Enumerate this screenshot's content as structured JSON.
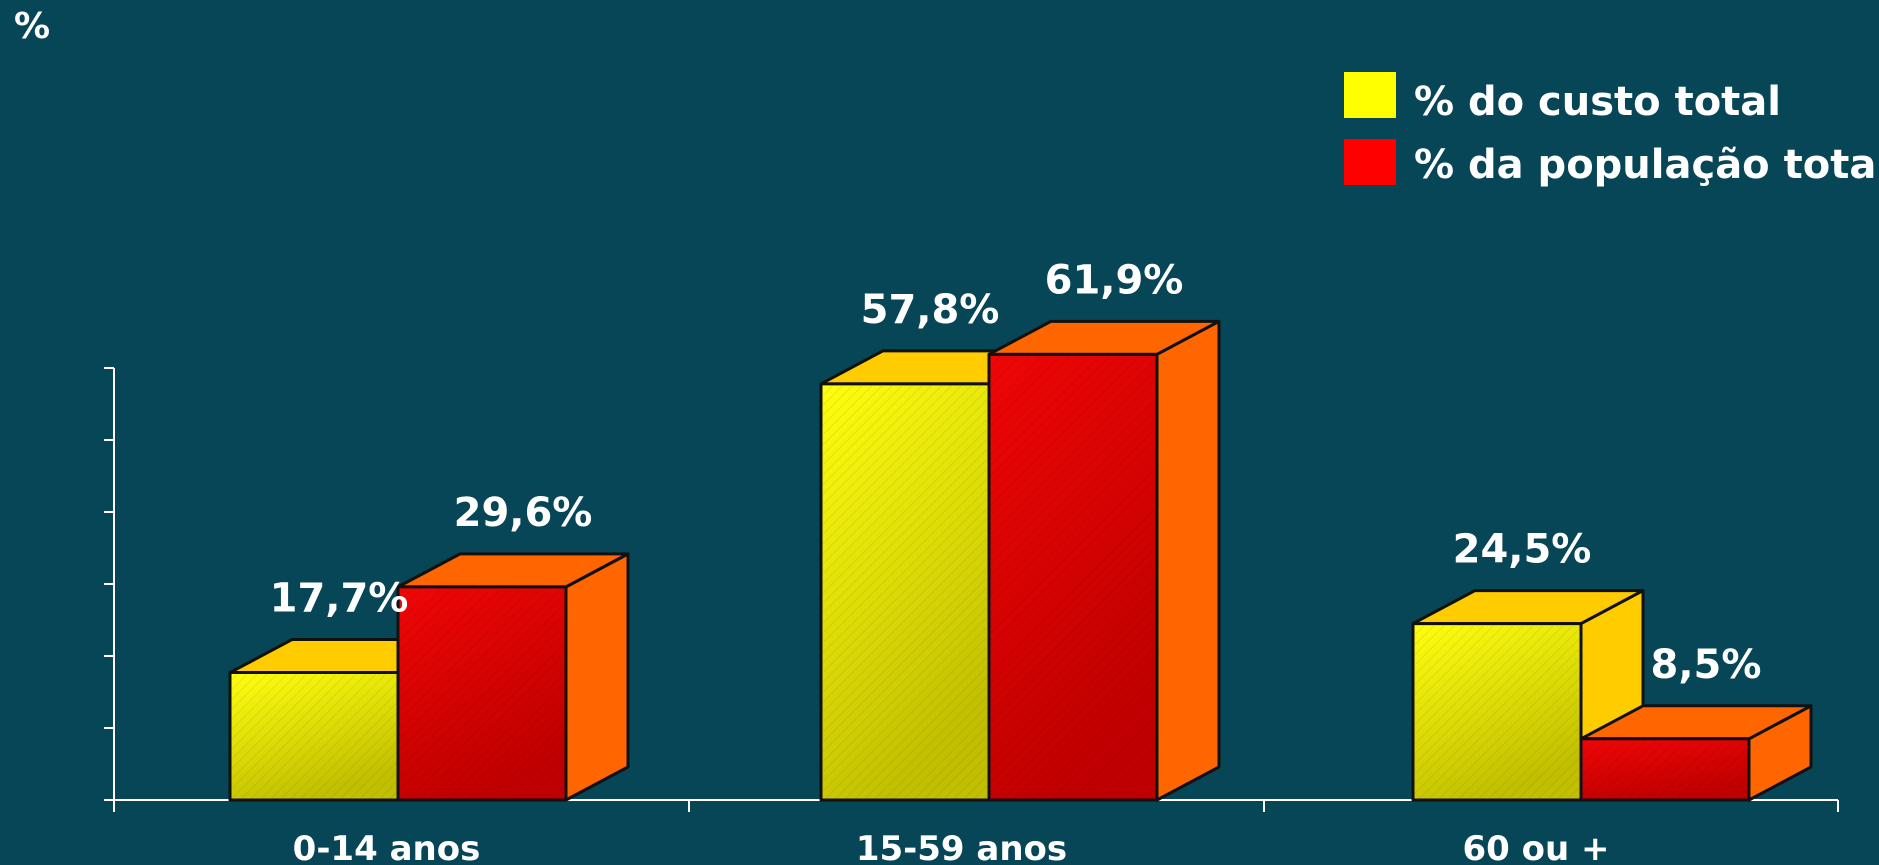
{
  "chart_data": {
    "type": "bar",
    "ylabel": "%",
    "categories": [
      "0-14 anos",
      "15-59 anos",
      "60 ou +"
    ],
    "series": [
      {
        "name": "% do custo total",
        "values": [
          17.7,
          57.8,
          24.5
        ],
        "labels": [
          "17,7%",
          "57,8%",
          "24,5%"
        ],
        "color": "#f2f200"
      },
      {
        "name": "% da população total",
        "values": [
          29.6,
          61.9,
          8.5
        ],
        "labels": [
          "29,6%",
          "61,9%",
          "8,5%"
        ],
        "color": "#e00000"
      }
    ],
    "ylim": [
      0,
      70
    ],
    "yticks": [
      0,
      10,
      20,
      30,
      40,
      50,
      60
    ],
    "legend_position": "top-right",
    "grid": false,
    "style": "3d"
  }
}
